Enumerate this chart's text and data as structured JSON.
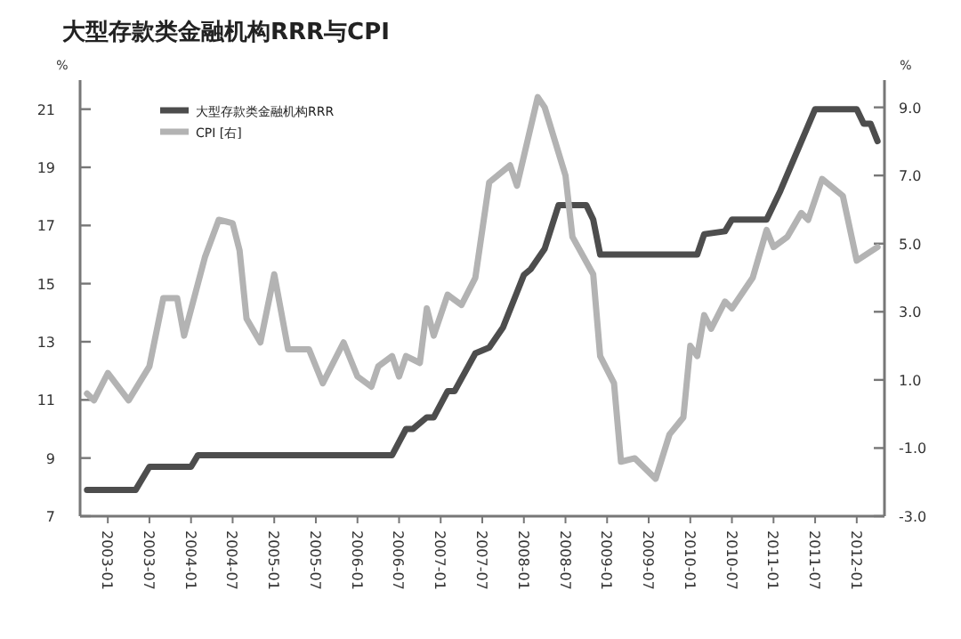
{
  "chart_data": {
    "type": "line",
    "title": "大型存款类金融机构RRR与CPI",
    "ylabel": "%",
    "y2label": "%",
    "legend": "top left",
    "xlim": [
      "2002-09",
      "2012-05"
    ],
    "xticks": [
      "2003-01",
      "2003-07",
      "2004-01",
      "2004-07",
      "2005-01",
      "2005-07",
      "2006-01",
      "2006-07",
      "2007-01",
      "2007-07",
      "2008-01",
      "2008-07",
      "2009-01",
      "2009-07",
      "2010-01",
      "2010-07",
      "2011-01",
      "2011-07",
      "2012-01"
    ],
    "ylim": [
      7,
      22
    ],
    "yticks": [
      7,
      9,
      11,
      13,
      15,
      17,
      19,
      21
    ],
    "y2lim": [
      -3,
      9.8
    ],
    "y2ticks": [
      {
        "value": -3,
        "label": "-3.0"
      },
      {
        "value": -1,
        "label": "-1.0"
      },
      {
        "value": 1,
        "label": "1.0"
      },
      {
        "value": 3,
        "label": "3.0"
      },
      {
        "value": 5,
        "label": "5.0"
      },
      {
        "value": 7,
        "label": "7.0"
      },
      {
        "value": 9,
        "label": "9.0"
      }
    ],
    "series": [
      {
        "name": "大型存款类金融机构RRR",
        "color": "#4d4d4d",
        "x": [
          "2002-10",
          "2003-05",
          "2003-07",
          "2004-01",
          "2004-02",
          "2006-06",
          "2006-08",
          "2006-09",
          "2006-11",
          "2006-12",
          "2007-02",
          "2007-03",
          "2007-06",
          "2007-08",
          "2007-10",
          "2007-12",
          "2008-01",
          "2008-02",
          "2008-04",
          "2008-06",
          "2008-10",
          "2008-11",
          "2008-12",
          "2010-02",
          "2010-03",
          "2010-06",
          "2010-07",
          "2010-12",
          "2011-02",
          "2011-07",
          "2012-01",
          "2012-02",
          "2012-03",
          "2012-04"
        ],
        "values": [
          7.9,
          7.9,
          8.7,
          8.7,
          9.1,
          9.1,
          10.0,
          10.0,
          10.4,
          10.4,
          11.3,
          11.3,
          12.6,
          12.8,
          13.5,
          14.7,
          15.3,
          15.5,
          16.2,
          17.7,
          17.7,
          17.2,
          16.0,
          16.0,
          16.7,
          16.8,
          17.2,
          17.2,
          18.2,
          21.0,
          21.0,
          20.5,
          20.5,
          19.9
        ]
      },
      {
        "name": "CPI [右]",
        "color": "#b3b3b3",
        "axis": "y2",
        "x": [
          "2002-10",
          "2002-11",
          "2003-01",
          "2003-04",
          "2003-07",
          "2003-09",
          "2003-11",
          "2003-12",
          "2004-03",
          "2004-05",
          "2004-07",
          "2004-08",
          "2004-09",
          "2004-11",
          "2005-01",
          "2005-03",
          "2005-06",
          "2005-08",
          "2005-11",
          "2006-01",
          "2006-03",
          "2006-04",
          "2006-06",
          "2006-07",
          "2006-08",
          "2006-10",
          "2006-11",
          "2006-12",
          "2007-02",
          "2007-04",
          "2007-06",
          "2007-08",
          "2007-11",
          "2007-12",
          "2008-03",
          "2008-04",
          "2008-07",
          "2008-08",
          "2008-11",
          "2008-12",
          "2009-02",
          "2009-03",
          "2009-05",
          "2009-08",
          "2009-10",
          "2009-12",
          "2010-01",
          "2010-02",
          "2010-03",
          "2010-04",
          "2010-06",
          "2010-07",
          "2010-10",
          "2010-12",
          "2011-01",
          "2011-03",
          "2011-05",
          "2011-06",
          "2011-08",
          "2011-11",
          "2012-01",
          "2012-04"
        ],
        "values": [
          0.6,
          0.4,
          1.2,
          0.4,
          1.4,
          3.4,
          3.4,
          2.3,
          4.6,
          5.7,
          5.6,
          4.8,
          2.8,
          2.1,
          4.1,
          1.9,
          1.9,
          0.9,
          2.1,
          1.1,
          0.8,
          1.4,
          1.7,
          1.1,
          1.7,
          1.5,
          3.1,
          2.3,
          3.5,
          3.2,
          4.0,
          6.8,
          7.3,
          6.7,
          9.3,
          9.0,
          7.0,
          5.2,
          4.1,
          1.7,
          0.9,
          -1.4,
          -1.3,
          -1.9,
          -0.6,
          -0.1,
          2.0,
          1.7,
          2.9,
          2.5,
          3.3,
          3.1,
          4.0,
          5.4,
          4.9,
          5.2,
          5.9,
          5.7,
          6.9,
          6.4,
          4.5,
          4.9
        ]
      }
    ]
  }
}
